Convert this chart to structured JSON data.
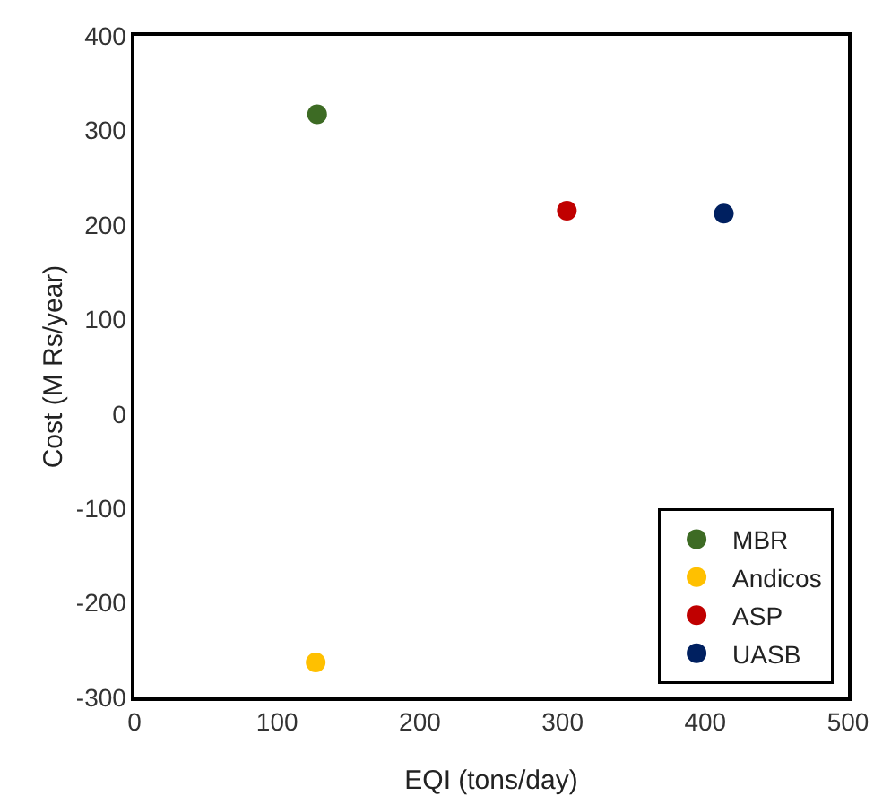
{
  "chart_data": {
    "type": "scatter",
    "xlabel": "EQI (tons/day)",
    "ylabel": "Cost (M Rs/year)",
    "xlim": [
      0,
      500
    ],
    "xticks": [
      0,
      100,
      200,
      300,
      400,
      500
    ],
    "ylim": [
      -300,
      400
    ],
    "yticks": [
      -300,
      -200,
      -100,
      0,
      100,
      200,
      300,
      400
    ],
    "grid": false,
    "legend": "bottom right",
    "marker": "circle",
    "series": [
      {
        "name": "MBR",
        "color": "#3d6b24",
        "x": [
          128
        ],
        "values": [
          317
        ]
      },
      {
        "name": "Andicos",
        "color": "#ffc000",
        "x": [
          127
        ],
        "values": [
          -263
        ]
      },
      {
        "name": "ASP",
        "color": "#c00000",
        "x": [
          303
        ],
        "values": [
          215
        ]
      },
      {
        "name": "UASB",
        "color": "#002060",
        "x": [
          413
        ],
        "values": [
          212
        ]
      }
    ]
  }
}
